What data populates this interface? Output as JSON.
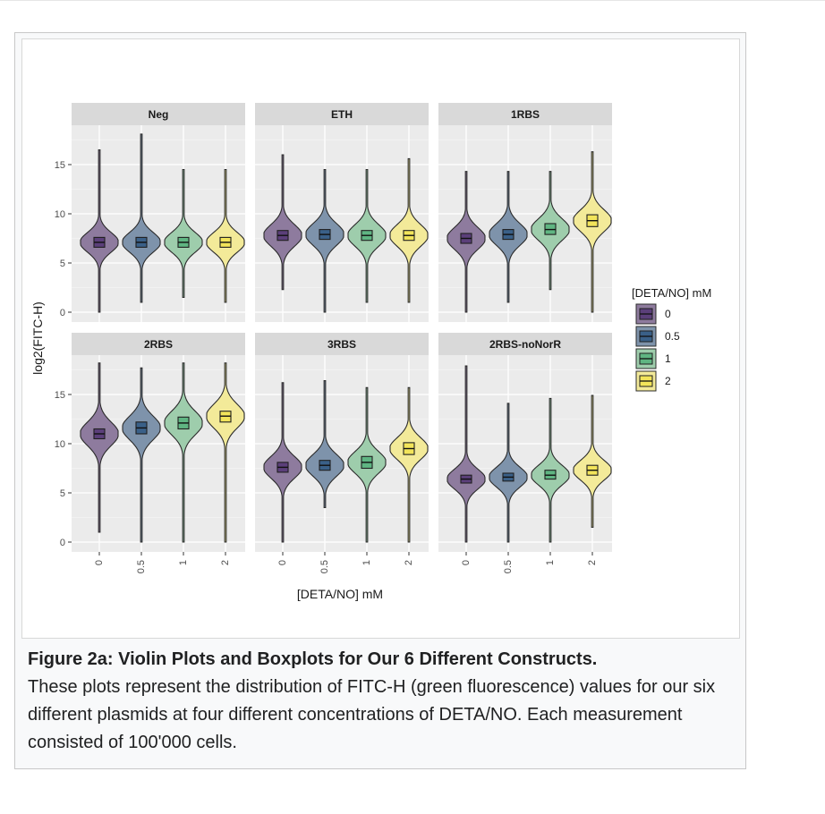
{
  "caption": {
    "title": "Figure 2a: Violin Plots and Boxplots for Our 6 Different Constructs.",
    "body": "These plots represent the distribution of FITC-H (green fluorescence) values for our six different plasmids at four different concentrations of DETA/NO. Each measurement consisted of 100'000 cells."
  },
  "chart_data": {
    "type": "violin",
    "xlabel": "[DETA/NO] mM",
    "ylabel": "log2(FITC-H)",
    "categories": [
      "0",
      "0.5",
      "1",
      "2"
    ],
    "y_ticks": [
      0,
      5,
      10,
      15
    ],
    "ylim": [
      -1,
      19
    ],
    "grid": true,
    "legend": {
      "title": "[DETA/NO] mM",
      "placement": "right",
      "entries": [
        "0",
        "0.5",
        "1",
        "2"
      ],
      "colors": [
        "#5b3f7a",
        "#3a6088",
        "#5fb582",
        "#f2e45a"
      ],
      "fill_colors": [
        "#8e7b9e",
        "#7e93ab",
        "#9ecdac",
        "#f3ea99"
      ]
    },
    "panels": [
      {
        "name": "Neg",
        "series": [
          {
            "category": "0",
            "median": 7.1,
            "q1": 6.6,
            "q3": 7.6,
            "min": 0.0,
            "max": 16.5,
            "spread": 1.0
          },
          {
            "category": "0.5",
            "median": 7.1,
            "q1": 6.6,
            "q3": 7.6,
            "min": 1.0,
            "max": 18.1,
            "spread": 1.0
          },
          {
            "category": "1",
            "median": 7.1,
            "q1": 6.6,
            "q3": 7.6,
            "min": 1.5,
            "max": 14.5,
            "spread": 1.0
          },
          {
            "category": "2",
            "median": 7.1,
            "q1": 6.6,
            "q3": 7.6,
            "min": 1.0,
            "max": 14.5,
            "spread": 1.0
          }
        ]
      },
      {
        "name": "ETH",
        "series": [
          {
            "category": "0",
            "median": 7.8,
            "q1": 7.3,
            "q3": 8.3,
            "min": 2.3,
            "max": 16.0,
            "spread": 1.1
          },
          {
            "category": "0.5",
            "median": 7.9,
            "q1": 7.4,
            "q3": 8.4,
            "min": 0.0,
            "max": 14.5,
            "spread": 1.1
          },
          {
            "category": "1",
            "median": 7.8,
            "q1": 7.3,
            "q3": 8.3,
            "min": 1.0,
            "max": 14.5,
            "spread": 1.1
          },
          {
            "category": "2",
            "median": 7.8,
            "q1": 7.3,
            "q3": 8.3,
            "min": 1.0,
            "max": 15.6,
            "spread": 1.1
          }
        ]
      },
      {
        "name": "1RBS",
        "series": [
          {
            "category": "0",
            "median": 7.5,
            "q1": 7.0,
            "q3": 8.0,
            "min": 0.0,
            "max": 14.3,
            "spread": 1.1
          },
          {
            "category": "0.5",
            "median": 7.9,
            "q1": 7.4,
            "q3": 8.4,
            "min": 1.0,
            "max": 14.3,
            "spread": 1.1
          },
          {
            "category": "1",
            "median": 8.4,
            "q1": 7.9,
            "q3": 9.0,
            "min": 2.3,
            "max": 14.3,
            "spread": 1.1
          },
          {
            "category": "2",
            "median": 9.3,
            "q1": 8.7,
            "q3": 9.9,
            "min": 0.0,
            "max": 16.3,
            "spread": 1.1
          }
        ]
      },
      {
        "name": "2RBS",
        "series": [
          {
            "category": "0",
            "median": 11.0,
            "q1": 10.5,
            "q3": 11.5,
            "min": 1.0,
            "max": 18.2,
            "spread": 1.2
          },
          {
            "category": "0.5",
            "median": 11.6,
            "q1": 11.0,
            "q3": 12.2,
            "min": 0.0,
            "max": 17.7,
            "spread": 1.2
          },
          {
            "category": "1",
            "median": 12.1,
            "q1": 11.5,
            "q3": 12.7,
            "min": 0.0,
            "max": 18.2,
            "spread": 1.2
          },
          {
            "category": "2",
            "median": 12.8,
            "q1": 12.2,
            "q3": 13.3,
            "min": 0.0,
            "max": 18.2,
            "spread": 1.2
          }
        ]
      },
      {
        "name": "3RBS",
        "series": [
          {
            "category": "0",
            "median": 7.6,
            "q1": 7.1,
            "q3": 8.1,
            "min": 0.0,
            "max": 16.2,
            "spread": 1.1
          },
          {
            "category": "0.5",
            "median": 7.8,
            "q1": 7.3,
            "q3": 8.3,
            "min": 3.5,
            "max": 16.4,
            "spread": 1.1
          },
          {
            "category": "1",
            "median": 8.1,
            "q1": 7.5,
            "q3": 8.7,
            "min": 0.0,
            "max": 15.7,
            "spread": 1.1
          },
          {
            "category": "2",
            "median": 9.5,
            "q1": 8.9,
            "q3": 10.1,
            "min": 0.0,
            "max": 15.7,
            "spread": 1.1
          }
        ]
      },
      {
        "name": "2RBS-noNorR",
        "series": [
          {
            "category": "0",
            "median": 6.4,
            "q1": 6.0,
            "q3": 6.8,
            "min": 0.0,
            "max": 17.9,
            "spread": 1.0
          },
          {
            "category": "0.5",
            "median": 6.6,
            "q1": 6.2,
            "q3": 7.0,
            "min": 0.0,
            "max": 14.1,
            "spread": 1.0
          },
          {
            "category": "1",
            "median": 6.8,
            "q1": 6.4,
            "q3": 7.3,
            "min": 0.0,
            "max": 14.6,
            "spread": 1.0
          },
          {
            "category": "2",
            "median": 7.3,
            "q1": 6.8,
            "q3": 7.8,
            "min": 1.5,
            "max": 14.9,
            "spread": 1.0
          }
        ]
      }
    ]
  }
}
